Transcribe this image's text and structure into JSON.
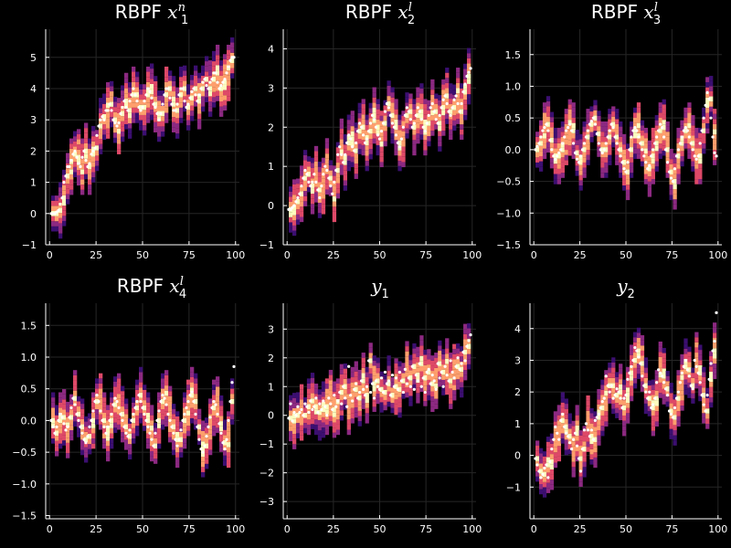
{
  "figure": {
    "background": "#000000"
  },
  "colors": {
    "heat": [
      "#0d0620",
      "#3b0f70",
      "#8c2981",
      "#de4968",
      "#fe9f6d",
      "#fcfdbf"
    ],
    "points": "#ffffff",
    "grid": "#262626",
    "axis": "#ffffff"
  },
  "chart_data": [
    {
      "type": "heatmap",
      "title": "RBPF",
      "title_var": "x",
      "title_sub": "1",
      "title_sup": "n",
      "xlim": [
        0,
        100
      ],
      "ylim": [
        -1,
        5.9
      ],
      "xticks": [
        "0",
        "25",
        "50",
        "75",
        "100"
      ],
      "ytick_values": [
        -1,
        0,
        1,
        2,
        3,
        4,
        5
      ],
      "ytick_labels": [
        "−1",
        "0",
        "1",
        "2",
        "3",
        "4",
        "5"
      ],
      "grid": true,
      "legend": "none",
      "series": [
        {
          "kind": "points",
          "values": [
            0.0,
            0.0,
            0.0,
            0.05,
            0.1,
            0.3,
            0.5,
            1.0,
            1.2,
            1.5,
            1.5,
            1.7,
            1.9,
            2.0,
            1.8,
            1.6,
            1.5,
            1.8,
            2.0,
            1.7,
            1.5,
            1.6,
            1.9,
            2.0,
            2.1,
            2.5,
            2.8,
            3.0,
            3.1,
            3.0,
            3.3,
            3.3,
            3.5,
            3.3,
            3.0,
            2.9,
            2.8,
            2.9,
            3.2,
            3.4,
            3.6,
            3.4,
            3.3,
            3.6,
            3.8,
            4.0,
            3.8,
            3.6,
            3.4,
            3.3,
            3.4,
            3.6,
            3.8,
            4.0,
            3.9,
            3.7,
            3.5,
            3.4,
            3.2,
            3.0,
            3.2,
            3.5,
            3.8,
            4.0,
            4.0,
            3.7,
            3.5,
            3.3,
            3.3,
            3.5,
            3.8,
            4.0,
            4.0,
            3.6,
            3.4,
            3.5,
            3.7,
            3.9,
            4.0,
            3.8,
            3.6,
            3.8,
            4.0,
            4.2,
            4.3,
            4.1,
            4.0,
            4.2,
            4.3,
            4.5,
            4.5,
            4.2,
            4.0,
            4.1,
            4.2,
            4.3,
            4.5,
            4.7,
            4.9,
            5.0,
            5.0
          ]
        }
      ]
    },
    {
      "type": "heatmap",
      "title": "RBPF",
      "title_var": "x",
      "title_sub": "2",
      "title_sup": "l",
      "xlim": [
        0,
        100
      ],
      "ylim": [
        -1,
        4.5
      ],
      "xticks": [
        "0",
        "25",
        "50",
        "75",
        "100"
      ],
      "ytick_values": [
        -1,
        0,
        1,
        2,
        3,
        4
      ],
      "ytick_labels": [
        "−1",
        "0",
        "1",
        "2",
        "3",
        "4"
      ],
      "grid": true,
      "legend": "none",
      "series": [
        {
          "kind": "points",
          "values": [
            -0.1,
            -0.1,
            -0.05,
            0.0,
            0.1,
            0.2,
            0.3,
            0.5,
            0.7,
            0.9,
            0.8,
            0.6,
            0.5,
            0.6,
            0.8,
            0.6,
            0.4,
            0.2,
            0.5,
            0.8,
            1.0,
            0.9,
            0.7,
            0.5,
            0.3,
            0.6,
            0.9,
            1.3,
            1.5,
            1.3,
            1.1,
            1.3,
            1.6,
            1.8,
            1.7,
            1.5,
            1.4,
            1.6,
            1.9,
            2.1,
            2.0,
            1.8,
            1.6,
            1.7,
            1.9,
            2.1,
            2.3,
            2.2,
            2.0,
            1.8,
            1.7,
            1.9,
            2.1,
            2.4,
            2.6,
            2.5,
            2.3,
            2.1,
            2.0,
            1.8,
            1.6,
            1.5,
            1.7,
            2.0,
            2.3,
            2.5,
            2.4,
            2.2,
            2.0,
            2.1,
            2.3,
            2.5,
            2.4,
            2.2,
            2.0,
            1.9,
            2.1,
            2.3,
            2.5,
            2.6,
            2.4,
            2.2,
            2.1,
            2.3,
            2.5,
            2.7,
            2.8,
            2.6,
            2.4,
            2.3,
            2.5,
            2.7,
            2.8,
            2.6,
            2.4,
            2.6,
            2.9,
            3.1,
            3.3,
            3.4,
            3.5
          ]
        }
      ]
    },
    {
      "type": "heatmap",
      "title": "RBPF",
      "title_var": "x",
      "title_sub": "3",
      "title_sup": "l",
      "xlim": [
        0,
        100
      ],
      "ylim": [
        -1.5,
        1.9
      ],
      "xticks": [
        "0",
        "25",
        "50",
        "75",
        "100"
      ],
      "ytick_values": [
        -1.5,
        -1.0,
        -0.5,
        0.0,
        0.5,
        1.0,
        1.5
      ],
      "ytick_labels": [
        "−1.5",
        "−1.0",
        "−0.5",
        "0.0",
        "0.5",
        "1.0",
        "1.5"
      ],
      "grid": true,
      "legend": "none",
      "series": [
        {
          "kind": "points",
          "values": [
            0.0,
            0.05,
            0.1,
            0.2,
            0.3,
            0.35,
            0.4,
            0.3,
            0.15,
            0.0,
            -0.1,
            -0.15,
            -0.1,
            -0.05,
            0.0,
            0.1,
            0.2,
            0.3,
            0.35,
            0.4,
            0.3,
            0.1,
            -0.05,
            -0.15,
            -0.2,
            -0.1,
            0.0,
            0.1,
            0.2,
            0.3,
            0.4,
            0.45,
            0.5,
            0.4,
            0.25,
            0.1,
            0.0,
            -0.05,
            0.0,
            0.1,
            0.2,
            0.3,
            0.4,
            0.35,
            0.2,
            0.1,
            0.0,
            -0.1,
            -0.2,
            -0.3,
            -0.35,
            -0.2,
            0.0,
            0.2,
            0.3,
            0.35,
            0.3,
            0.2,
            0.1,
            0.0,
            -0.1,
            -0.2,
            -0.3,
            -0.25,
            -0.1,
            0.0,
            0.1,
            0.2,
            0.3,
            0.4,
            0.35,
            0.2,
            0.0,
            -0.2,
            -0.35,
            -0.45,
            -0.5,
            -0.3,
            -0.1,
            0.0,
            0.1,
            0.2,
            0.3,
            0.35,
            0.3,
            0.2,
            0.1,
            0.0,
            -0.1,
            -0.15,
            -0.1,
            0.1,
            0.3,
            0.5,
            0.7,
            0.9,
            0.8,
            0.5,
            0.2,
            -0.05,
            -0.1
          ]
        }
      ]
    },
    {
      "type": "heatmap",
      "title": "RBPF",
      "title_var": "x",
      "title_sub": "4",
      "title_sup": "l",
      "xlim": [
        0,
        100
      ],
      "ylim": [
        -1.55,
        1.85
      ],
      "xticks": [
        "0",
        "25",
        "50",
        "75",
        "100"
      ],
      "ytick_values": [
        -1.5,
        -1.0,
        -0.5,
        0.0,
        0.5,
        1.0,
        1.5
      ],
      "ytick_labels": [
        "−1.5",
        "−1.0",
        "−0.5",
        "0.0",
        "0.5",
        "1.0",
        "1.5"
      ],
      "grid": true,
      "legend": "none",
      "series": [
        {
          "kind": "points",
          "values": [
            0.0,
            -0.1,
            -0.2,
            -0.1,
            0.0,
            0.1,
            0.05,
            -0.05,
            -0.15,
            -0.1,
            0.05,
            0.2,
            0.35,
            0.25,
            0.1,
            0.0,
            -0.1,
            -0.2,
            -0.3,
            -0.35,
            -0.25,
            -0.1,
            0.0,
            0.15,
            0.3,
            0.4,
            0.3,
            0.15,
            0.0,
            -0.1,
            -0.2,
            -0.1,
            0.0,
            0.1,
            0.25,
            0.35,
            0.3,
            0.2,
            0.1,
            0.0,
            -0.1,
            -0.2,
            -0.25,
            -0.15,
            0.0,
            0.1,
            0.2,
            0.3,
            0.4,
            0.3,
            0.2,
            0.1,
            0.0,
            -0.1,
            -0.2,
            -0.3,
            -0.4,
            -0.2,
            0.0,
            0.15,
            0.3,
            0.4,
            0.35,
            0.25,
            0.1,
            0.0,
            -0.1,
            -0.2,
            -0.3,
            -0.4,
            -0.3,
            -0.15,
            0.0,
            0.1,
            0.2,
            0.3,
            0.4,
            0.45,
            0.3,
            0.1,
            -0.1,
            -0.3,
            -0.45,
            -0.5,
            -0.4,
            -0.25,
            -0.1,
            0.05,
            0.2,
            0.3,
            0.25,
            0.1,
            -0.05,
            -0.2,
            -0.35,
            -0.45,
            -0.3,
            0.0,
            0.3,
            0.6,
            0.85
          ]
        }
      ]
    },
    {
      "type": "heatmap",
      "title": "",
      "title_var": "y",
      "title_sub": "1",
      "title_sup": "",
      "xlim": [
        0,
        100
      ],
      "ylim": [
        -3.6,
        3.9
      ],
      "xticks": [
        "0",
        "25",
        "50",
        "75",
        "100"
      ],
      "ytick_values": [
        -3,
        -2,
        -1,
        0,
        1,
        2,
        3
      ],
      "ytick_labels": [
        "−3",
        "−2",
        "−1",
        "0",
        "1",
        "2",
        "3"
      ],
      "grid": true,
      "legend": "none",
      "series": [
        {
          "kind": "points",
          "values": [
            -0.1,
            0.4,
            -0.2,
            0.1,
            0.0,
            0.3,
            0.1,
            0.2,
            0.0,
            0.4,
            0.3,
            0.1,
            0.5,
            0.2,
            0.3,
            0.6,
            0.1,
            0.4,
            0.2,
            0.5,
            0.3,
            0.0,
            0.6,
            0.4,
            0.2,
            0.7,
            0.3,
            0.5,
            0.8,
            0.4,
            1.0,
            0.6,
            0.3,
            1.7,
            0.7,
            0.5,
            0.9,
            1.1,
            0.6,
            0.8,
            1.2,
            0.9,
            0.7,
            1.0,
            1.9,
            0.8,
            1.1,
            0.6,
            1.2,
            1.0,
            0.9,
            1.3,
            0.8,
            1.5,
            1.1,
            1.2,
            0.7,
            1.4,
            1.0,
            1.3,
            0.9,
            1.5,
            1.2,
            0.8,
            1.6,
            1.1,
            1.3,
            1.0,
            1.7,
            0.9,
            1.4,
            1.2,
            1.8,
            1.0,
            1.3,
            0.8,
            1.5,
            1.6,
            1.1,
            1.4,
            1.2,
            0.9,
            1.8,
            1.3,
            1.5,
            1.0,
            1.7,
            1.4,
            1.2,
            1.9,
            1.5,
            1.3,
            1.7,
            2.0,
            1.6,
            1.8,
            2.2,
            1.9,
            2.4,
            2.6,
            2.8
          ]
        }
      ]
    },
    {
      "type": "heatmap",
      "title": "",
      "title_var": "y",
      "title_sub": "2",
      "title_sup": "",
      "xlim": [
        0,
        100
      ],
      "ylim": [
        -2.0,
        4.8
      ],
      "xticks": [
        "0",
        "25",
        "50",
        "75",
        "100"
      ],
      "ytick_values": [
        -1,
        0,
        1,
        2,
        3,
        4
      ],
      "ytick_labels": [
        "−1",
        "0",
        "1",
        "2",
        "3",
        "4"
      ],
      "grid": true,
      "legend": "none",
      "series": [
        {
          "kind": "points",
          "values": [
            -0.1,
            -0.3,
            -0.5,
            -0.7,
            -0.6,
            -0.4,
            -0.3,
            -0.7,
            -0.2,
            0.2,
            0.5,
            0.9,
            0.7,
            0.5,
            1.1,
            1.3,
            0.9,
            0.7,
            0.6,
            0.4,
            0.2,
            0.5,
            0.7,
            0.3,
            -0.1,
            -0.5,
            0.2,
            0.8,
            1.0,
            0.8,
            0.6,
            0.8,
            0.5,
            1.1,
            1.2,
            1.3,
            1.5,
            1.7,
            1.8,
            2.5,
            2.2,
            2.0,
            2.2,
            1.8,
            1.9,
            2.1,
            2.0,
            1.8,
            1.5,
            1.8,
            1.9,
            2.4,
            2.6,
            2.8,
            3.0,
            3.4,
            3.3,
            3.1,
            2.9,
            2.5,
            2.2,
            2.0,
            1.8,
            2.0,
            1.5,
            1.6,
            1.8,
            2.3,
            2.7,
            2.6,
            2.5,
            2.3,
            2.1,
            1.9,
            1.4,
            1.3,
            1.2,
            1.5,
            1.8,
            2.0,
            2.3,
            2.6,
            2.8,
            3.0,
            2.7,
            2.5,
            2.2,
            2.1,
            3.0,
            2.8,
            2.6,
            2.3,
            1.9,
            1.6,
            1.4,
            1.9,
            2.4,
            2.9,
            3.3,
            3.6,
            4.5
          ]
        }
      ]
    }
  ]
}
